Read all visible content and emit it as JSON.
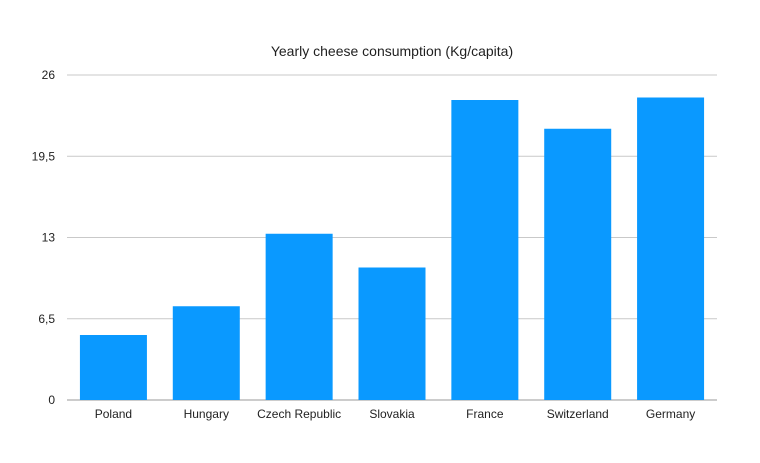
{
  "chart_data": {
    "type": "bar",
    "title": "Yearly cheese consumption (Kg/capita)",
    "xlabel": "",
    "ylabel": "",
    "categories": [
      "Poland",
      "Hungary",
      "Czech Republic",
      "Slovakia",
      "France",
      "Switzerland",
      "Germany"
    ],
    "values": [
      5.2,
      7.5,
      13.3,
      10.6,
      24.0,
      21.7,
      24.2
    ],
    "ylim": [
      0,
      26
    ],
    "yticks": [
      0,
      6.5,
      13,
      19.5,
      26
    ],
    "ytick_labels": [
      "0",
      "6,5",
      "13",
      "19,5",
      "26"
    ],
    "grid": true,
    "legend": "none",
    "colors": {
      "bar": "#0a99ff",
      "grid": "#c9c9c9",
      "text": "#1f1f1f"
    }
  }
}
